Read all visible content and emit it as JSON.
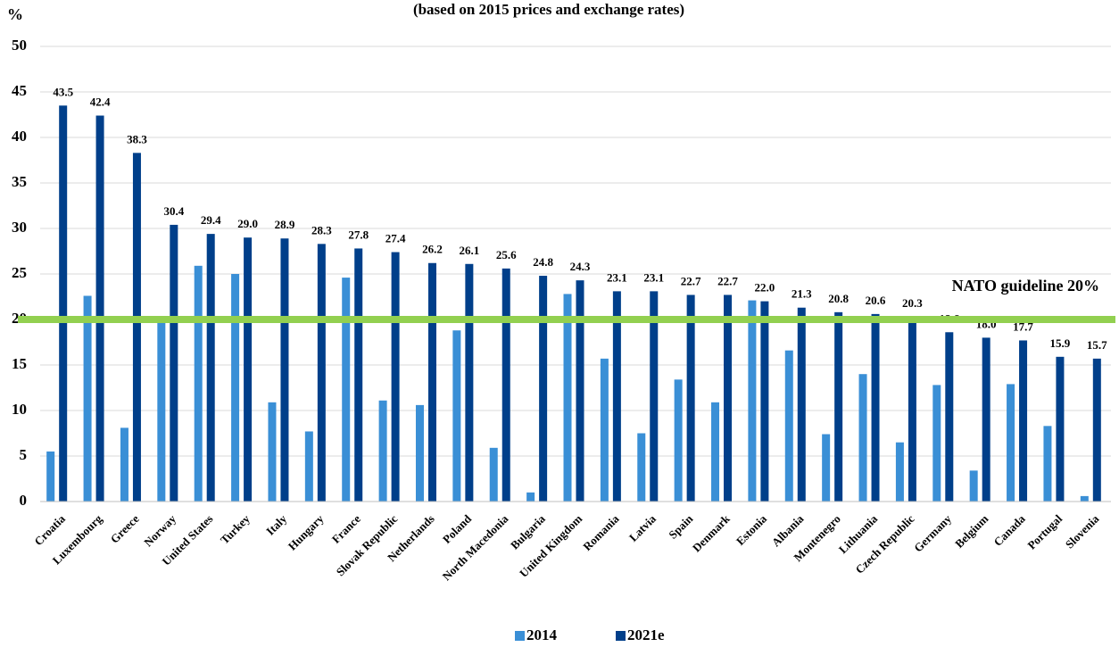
{
  "chart_data": {
    "type": "bar",
    "subtitle": "(based on 2015 prices and exchange rates)",
    "y_label": "%",
    "categories": [
      "Croatia",
      "Luxembourg",
      "Greece",
      "Norway",
      "United States",
      "Turkey",
      "Italy",
      "Hungary",
      "France",
      "Slovak Republic",
      "Netherlands",
      "Poland",
      "North Macedonia",
      "Bulgaria",
      "United Kingdom",
      "Romania",
      "Latvia",
      "Spain",
      "Denmark",
      "Estonia",
      "Albania",
      "Montenegro",
      "Lithuania",
      "Czech Republic",
      "Germany",
      "Belgium",
      "Canada",
      "Portugal",
      "Slovenia"
    ],
    "series": [
      {
        "name": "2014",
        "color": "#3a8fd6",
        "values": [
          5.5,
          22.6,
          8.1,
          19.7,
          25.9,
          25.0,
          10.9,
          7.7,
          24.6,
          11.1,
          10.6,
          18.8,
          5.9,
          1.0,
          22.8,
          15.7,
          7.5,
          13.4,
          10.9,
          22.1,
          16.6,
          7.4,
          14.0,
          6.5,
          12.8,
          3.4,
          12.9,
          8.3,
          0.6
        ]
      },
      {
        "name": "2021e",
        "color": "#003f8a",
        "values": [
          43.5,
          42.4,
          38.3,
          30.4,
          29.4,
          29.0,
          28.9,
          28.3,
          27.8,
          27.4,
          26.2,
          26.1,
          25.6,
          24.8,
          24.3,
          23.1,
          23.1,
          22.7,
          22.7,
          22.0,
          21.3,
          20.8,
          20.6,
          20.3,
          18.6,
          18.0,
          17.7,
          15.9,
          15.7
        ],
        "value_labels": [
          "43.5",
          "42.4",
          "38.3",
          "30.4",
          "29.4",
          "29.0",
          "28.9",
          "28.3",
          "27.8",
          "27.4",
          "26.2",
          "26.1",
          "25.6",
          "24.8",
          "24.3",
          "23.1",
          "23.1",
          "22.7",
          "22.7",
          "22.0",
          "21.3",
          "20.8",
          "20.6",
          "20.3",
          "18.6",
          "18.0",
          "17.7",
          "15.9",
          "15.7"
        ]
      }
    ],
    "reference": {
      "value": 20,
      "label": "NATO guideline 20%",
      "color": "#92d050"
    },
    "ylim": [
      0,
      50
    ],
    "yticks": [
      0,
      5,
      10,
      15,
      20,
      25,
      30,
      35,
      40,
      45,
      50
    ],
    "grid": true,
    "legend": "bottom"
  }
}
